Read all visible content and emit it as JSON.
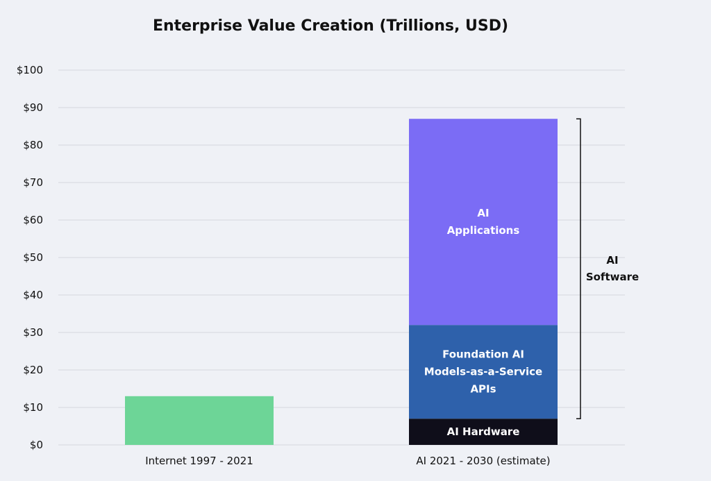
{
  "chart_data": {
    "type": "bar",
    "title": "Enterprise Value Creation (Trillions, USD)",
    "ylim": [
      0,
      100
    ],
    "y_ticks": [
      "$0",
      "$10",
      "$20",
      "$30",
      "$40",
      "$50",
      "$60",
      "$70",
      "$80",
      "$90",
      "$100"
    ],
    "grid": true,
    "categories": [
      "Internet 1997 - 2021",
      "AI 2021 - 2030 (estimate)"
    ],
    "bars": [
      {
        "category": "Internet 1997 - 2021",
        "segments": [
          {
            "label": "",
            "value": 13,
            "color": "#6dd597"
          }
        ]
      },
      {
        "category": "AI 2021 - 2030 (estimate)",
        "segments": [
          {
            "label": "AI Hardware",
            "value": 7,
            "color": "#0f0e1a"
          },
          {
            "label": "Foundation AI\nModels-as-a-Service\nAPIs",
            "value": 25,
            "color": "#2e61ab"
          },
          {
            "label": "AI\nApplications",
            "value": 55,
            "color": "#7b6cf5"
          }
        ]
      }
    ],
    "annotation": {
      "label": "AI\nSoftware",
      "from": 7,
      "to": 87
    }
  }
}
